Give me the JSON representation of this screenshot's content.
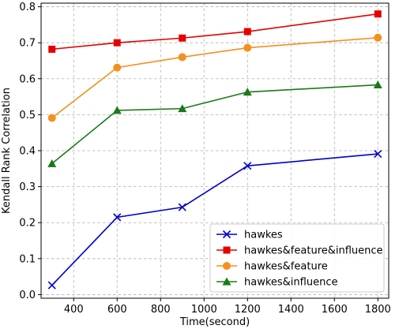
{
  "chart_data": {
    "type": "line",
    "xlabel": "Time(second)",
    "ylabel": "Kendall Rank Correlation",
    "xlim": [
      250,
      1850
    ],
    "ylim": [
      -0.01,
      0.81
    ],
    "xticks": [
      400,
      600,
      800,
      1000,
      1200,
      1400,
      1600,
      1800
    ],
    "yticks": [
      0.0,
      0.1,
      0.2,
      0.3,
      0.4,
      0.5,
      0.6,
      0.7,
      0.8
    ],
    "xtick_labels": [
      "400",
      "600",
      "800",
      "1000",
      "1200",
      "1400",
      "1600",
      "1800"
    ],
    "ytick_labels": [
      "0.0",
      "0.1",
      "0.2",
      "0.3",
      "0.4",
      "0.5",
      "0.6",
      "0.7",
      "0.8"
    ],
    "grid": true,
    "legend_position": "lower-right",
    "x": [
      300,
      600,
      900,
      1200,
      1800
    ],
    "series": [
      {
        "name": "hawkes",
        "color": "#0000cc",
        "marker": "x",
        "values": [
          0.026,
          0.215,
          0.243,
          0.358,
          0.391
        ]
      },
      {
        "name": "hawkes&feature&influence",
        "color": "#e60000",
        "marker": "square",
        "values": [
          0.682,
          0.7,
          0.713,
          0.731,
          0.78
        ]
      },
      {
        "name": "hawkes&feature",
        "color": "#f5901e",
        "marker": "circle",
        "values": [
          0.491,
          0.631,
          0.66,
          0.686,
          0.714
        ]
      },
      {
        "name": "hawkes&influence",
        "color": "#1a7a1a",
        "marker": "triangle",
        "values": [
          0.364,
          0.512,
          0.517,
          0.563,
          0.583
        ]
      }
    ]
  }
}
